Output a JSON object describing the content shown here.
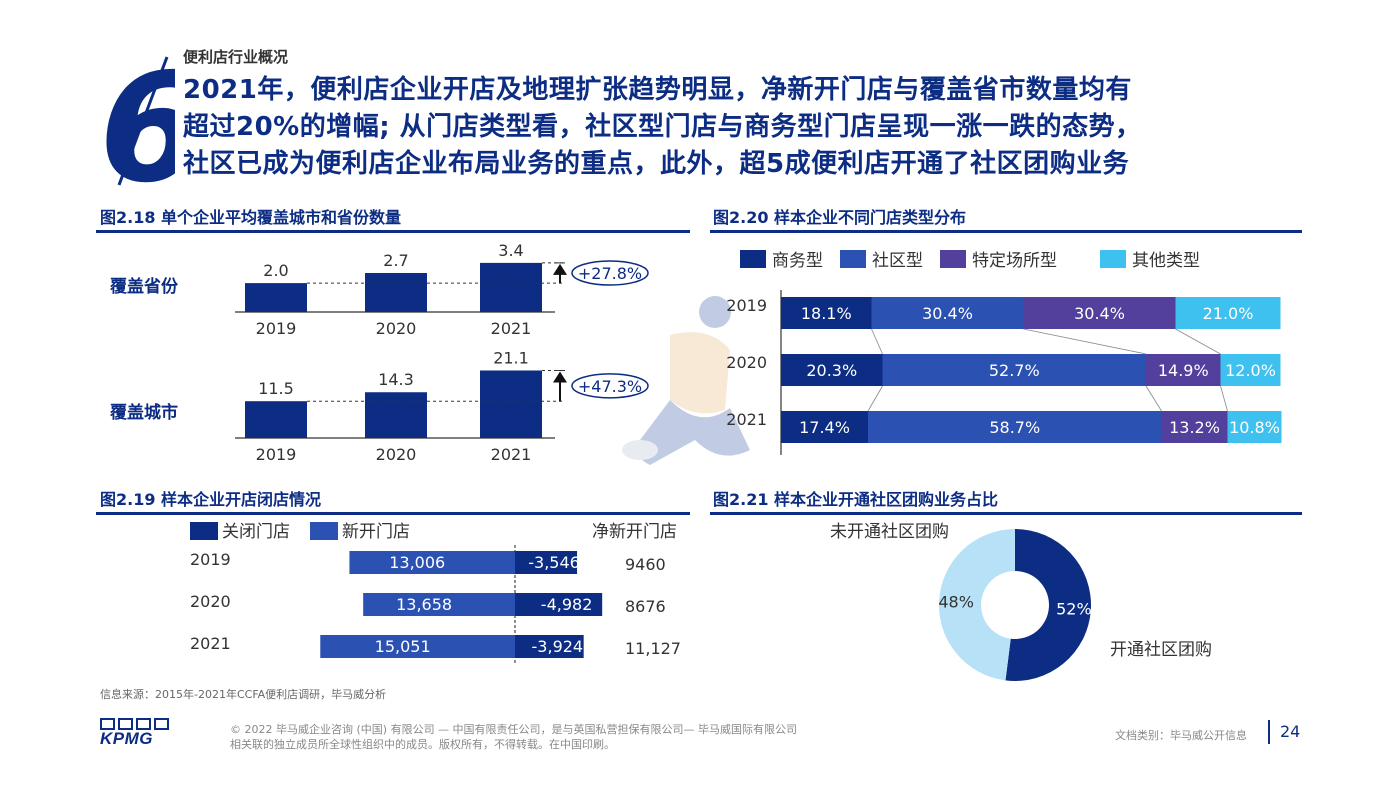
{
  "header": {
    "section_number": "6",
    "section_label": "便利店行业概况",
    "headline_lines": [
      "2021年，便利店企业开店及地理扩张趋势明显，净新开门店与覆盖省市数量均有",
      "超过20%的增幅; 从门店类型看，社区型门店与商务型门店呈现一涨一跌的态势，",
      "社区已成为便利店企业布局业务的重点，此外，超5成便利店开通了社区团购业务"
    ]
  },
  "colors": {
    "dark_blue": "#0c2d83",
    "mid_blue": "#2b51b3",
    "purple": "#533f9c",
    "cyan": "#3ec1ee",
    "light_blue": "#b7e1f6",
    "grid": "#999999"
  },
  "figures": {
    "fig218_title": "图2.18 单个企业平均覆盖城市和省份数量",
    "fig220_title": "图2.20 样本企业不同门店类型分布",
    "fig219_title": "图2.19 样本企业开店闭店情况",
    "fig221_title": "图2.21 样本企业开通社区团购业务占比"
  },
  "chart_data": [
    {
      "id": "fig218a",
      "type": "bar",
      "row_label": "覆盖省份",
      "categories": [
        "2019",
        "2020",
        "2021"
      ],
      "values": [
        2.0,
        2.7,
        3.4
      ],
      "value_labels": [
        "2.0",
        "2.7",
        "3.4"
      ],
      "growth_label": "+27.8%",
      "ylim": [
        0,
        3.6
      ]
    },
    {
      "id": "fig218b",
      "type": "bar",
      "row_label": "覆盖城市",
      "categories": [
        "2019",
        "2020",
        "2021"
      ],
      "values": [
        11.5,
        14.3,
        21.1
      ],
      "value_labels": [
        "11.5",
        "14.3",
        "21.1"
      ],
      "growth_label": "+47.3%",
      "ylim": [
        0,
        22.5
      ]
    },
    {
      "id": "fig220",
      "type": "bar",
      "stacked": true,
      "orientation": "horizontal",
      "categories": [
        "2019",
        "2020",
        "2021"
      ],
      "series": [
        {
          "name": "商务型",
          "values": [
            18.1,
            20.3,
            17.4
          ],
          "labels": [
            "18.1%",
            "20.3%",
            "17.4%"
          ],
          "color": "#0c2d83"
        },
        {
          "name": "社区型",
          "values": [
            30.4,
            52.7,
            58.7
          ],
          "labels": [
            "30.4%",
            "52.7%",
            "58.7%"
          ],
          "color": "#2b51b3"
        },
        {
          "name": "特定场所型",
          "values": [
            30.4,
            14.9,
            13.2
          ],
          "labels": [
            "30.4%",
            "14.9%",
            "13.2%"
          ],
          "color": "#533f9c"
        },
        {
          "name": "其他类型",
          "values": [
            21.0,
            12.0,
            10.8
          ],
          "labels": [
            "21.0%",
            "12.0%",
            "10.8%"
          ],
          "color": "#3ec1ee"
        }
      ],
      "legend": "top"
    },
    {
      "id": "fig219",
      "type": "bar",
      "orientation": "horizontal",
      "categories": [
        "2019",
        "2020",
        "2021"
      ],
      "legend_closed": "关闭门店",
      "legend_opened": "新开门店",
      "net_header": "净新开门店",
      "opened": [
        13006,
        13658,
        15051
      ],
      "opened_labels": [
        "13,006",
        "13,658",
        "15,051"
      ],
      "closed": [
        -3546,
        -4982,
        -3924
      ],
      "closed_labels": [
        "-3,546",
        "-4,982",
        "-3,924"
      ],
      "net_labels": [
        "9460",
        "8676",
        "11,127"
      ]
    },
    {
      "id": "fig221",
      "type": "pie",
      "donut": true,
      "labels": [
        "开通社区团购",
        "未开通社区团购"
      ],
      "values": [
        52,
        48
      ],
      "value_labels": [
        "52%",
        "48%"
      ],
      "colors": [
        "#0c2d83",
        "#b7e1f6"
      ]
    }
  ],
  "footer": {
    "source": "信息来源：2015年-2021年CCFA便利店调研，毕马威分析",
    "logo": "KPMG",
    "copyright_line1": "© 2022 毕马威企业咨询 (中国) 有限公司 — 中国有限责任公司，是与英国私营担保有限公司— 毕马威国际有限公司",
    "copyright_line2": "相关联的独立成员所全球性组织中的成员。版权所有，不得转载。在中国印刷。",
    "doc_class": "文档类别：毕马威公开信息",
    "page": "24"
  }
}
